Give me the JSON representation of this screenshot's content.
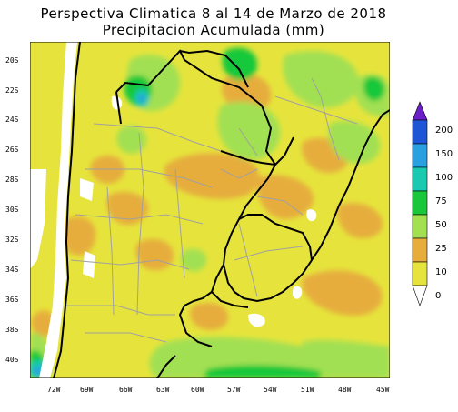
{
  "title": {
    "line1": "Perspectiva Climatica 8 al 14 de Marzo de 2018",
    "line2": "Precipitacion Acumulada (mm)"
  },
  "lat_labels": [
    "20S",
    "22S",
    "24S",
    "26S",
    "28S",
    "30S",
    "32S",
    "34S",
    "36S",
    "38S",
    "40S"
  ],
  "lon_labels": [
    "72W",
    "69W",
    "66W",
    "63W",
    "60W",
    "57W",
    "54W",
    "51W",
    "48W",
    "45W"
  ],
  "legend": {
    "levels": [
      "200",
      "150",
      "100",
      "75",
      "50",
      "25",
      "10",
      "0"
    ],
    "colors": [
      "#6a1fc9",
      "#1e55d6",
      "#2aa0e0",
      "#19c9b0",
      "#19c83a",
      "#a2e052",
      "#e6ad3c",
      "#e6e43c"
    ]
  },
  "colors": {
    "zero": "#e6e43c",
    "light": "#e6ad3c",
    "mid": "#a2e052",
    "green": "#19c83a",
    "cyan": "#19c9b0",
    "blue": "#2aa0e0",
    "border": "#000000",
    "province": "#a0a0a0"
  }
}
